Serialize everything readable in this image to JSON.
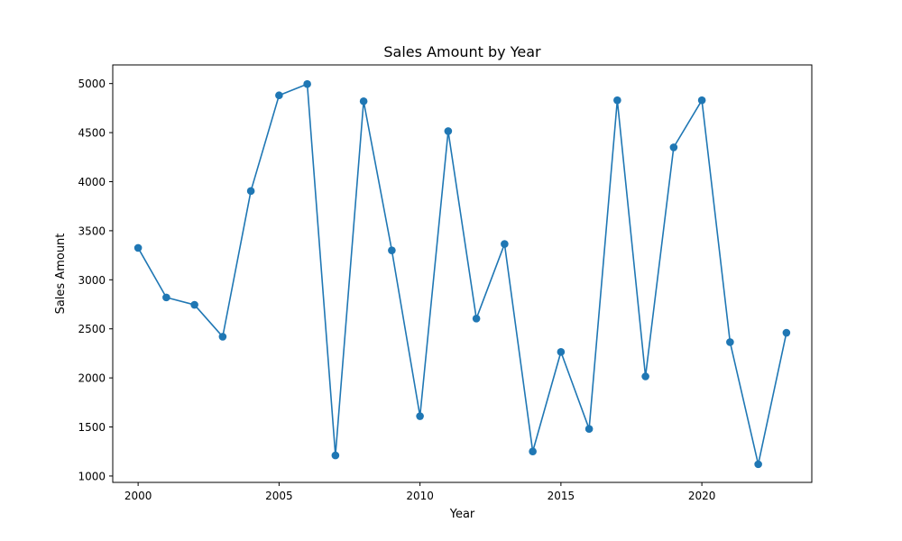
{
  "chart_data": {
    "type": "line",
    "title": "Sales Amount by Year",
    "xlabel": "Year",
    "ylabel": "Sales Amount",
    "xlim": [
      1999.1,
      2023.9
    ],
    "ylim": [
      935,
      5190
    ],
    "x_ticks": [
      2000,
      2005,
      2010,
      2015,
      2020
    ],
    "y_ticks": [
      1000,
      1500,
      2000,
      2500,
      3000,
      3500,
      4000,
      4500,
      5000
    ],
    "grid": false,
    "line_color": "#1f77b4",
    "marker": "circle",
    "series": [
      {
        "x": [
          2000,
          2001,
          2002,
          2003,
          2004,
          2005,
          2006,
          2007,
          2008,
          2009,
          2010,
          2011,
          2012,
          2013,
          2014,
          2015,
          2016,
          2017,
          2018,
          2019,
          2020,
          2021,
          2022,
          2023
        ],
        "values": [
          3325,
          2820,
          2745,
          2420,
          3905,
          4880,
          4995,
          1210,
          4820,
          3300,
          1610,
          4515,
          2605,
          3365,
          1250,
          2265,
          1480,
          4830,
          2015,
          4350,
          4830,
          2365,
          1120,
          2460
        ]
      }
    ]
  }
}
